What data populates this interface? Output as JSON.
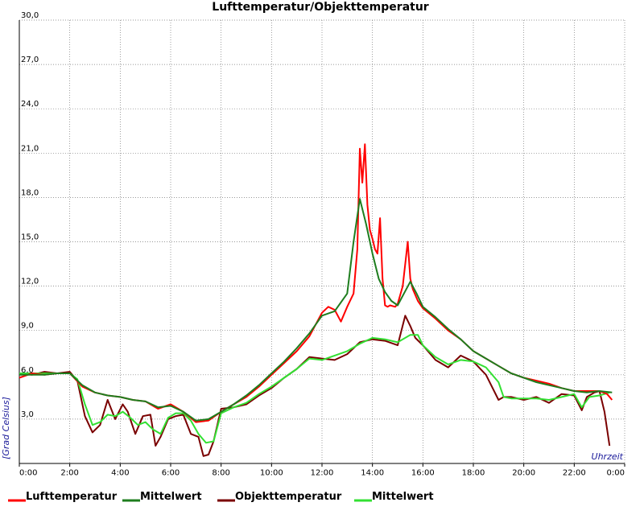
{
  "chart_data": {
    "type": "line",
    "title": "Lufttemperatur/Objekttemperatur",
    "xlabel": "Uhrzeit",
    "ylabel": "[Grad Celsius]",
    "xlim": [
      0,
      24
    ],
    "ylim": [
      0,
      30
    ],
    "grid": true,
    "legend_placement": "bottom",
    "x_ticks": [
      "0:00",
      "2:00",
      "4:00",
      "6:00",
      "8:00",
      "10:00",
      "12:00",
      "14:00",
      "16:00",
      "18:00",
      "20:00",
      "22:00",
      "0:00"
    ],
    "y_ticks": [
      "3,0",
      "6,0",
      "9,0",
      "12,0",
      "15,0",
      "18,0",
      "21,0",
      "24,0",
      "27,0",
      "30,0"
    ],
    "series": [
      {
        "name": "Lufttemperatur",
        "color": "#ff0000",
        "x": [
          0,
          0.5,
          1,
          1.5,
          2,
          2.5,
          3,
          3.5,
          4,
          4.5,
          5,
          5.5,
          6,
          6.5,
          7,
          7.5,
          8,
          8.5,
          9,
          9.5,
          10,
          10.5,
          11,
          11.5,
          12,
          12.25,
          12.5,
          12.75,
          13,
          13.25,
          13.4,
          13.5,
          13.6,
          13.7,
          13.8,
          13.9,
          14,
          14.1,
          14.2,
          14.3,
          14.4,
          14.5,
          14.6,
          14.7,
          14.9,
          15,
          15.2,
          15.4,
          15.5,
          15.6,
          15.8,
          16,
          16.5,
          17,
          17.5,
          18,
          18.5,
          19,
          19.5,
          20,
          20.5,
          21,
          21.5,
          22,
          22.5,
          23,
          23.3,
          23.5
        ],
        "values": [
          5.8,
          6.1,
          6.0,
          6.1,
          6.1,
          5.2,
          4.8,
          4.6,
          4.5,
          4.3,
          4.2,
          3.7,
          4.0,
          3.5,
          2.8,
          2.9,
          3.5,
          4.0,
          4.5,
          5.2,
          6.0,
          6.8,
          7.6,
          8.6,
          10.2,
          10.6,
          10.4,
          9.6,
          10.6,
          11.5,
          14.5,
          21.3,
          19.0,
          21.6,
          17.5,
          15.8,
          15.2,
          14.5,
          14.2,
          16.6,
          12.5,
          10.7,
          10.6,
          10.7,
          10.6,
          10.8,
          12.0,
          15.0,
          12.5,
          11.8,
          11.0,
          10.5,
          9.8,
          9.0,
          8.4,
          7.6,
          7.1,
          6.6,
          6.1,
          5.8,
          5.6,
          5.4,
          5.1,
          4.9,
          4.9,
          4.9,
          4.7,
          4.3
        ]
      },
      {
        "name": "Mittelwert",
        "color": "#1e7d1e",
        "x": [
          0,
          0.5,
          1,
          1.5,
          2,
          2.5,
          3,
          3.5,
          4,
          4.5,
          5,
          5.5,
          6,
          6.5,
          7,
          7.5,
          8,
          8.5,
          9,
          9.5,
          10,
          10.5,
          11,
          11.5,
          12,
          12.5,
          13,
          13.25,
          13.5,
          13.75,
          14,
          14.25,
          14.5,
          14.75,
          15,
          15.25,
          15.5,
          15.75,
          16,
          16.5,
          17,
          17.5,
          18,
          18.5,
          19,
          19.5,
          20,
          20.5,
          21,
          21.5,
          22,
          22.5,
          23,
          23.5
        ],
        "values": [
          6.0,
          6.0,
          6.0,
          6.1,
          6.1,
          5.3,
          4.8,
          4.6,
          4.5,
          4.3,
          4.2,
          3.8,
          3.9,
          3.5,
          2.9,
          3.0,
          3.5,
          4.0,
          4.6,
          5.3,
          6.1,
          6.9,
          7.8,
          8.8,
          10.0,
          10.3,
          11.5,
          15.0,
          17.9,
          16.2,
          14.2,
          12.5,
          11.6,
          11.0,
          10.7,
          11.5,
          12.3,
          11.5,
          10.6,
          9.9,
          9.1,
          8.4,
          7.6,
          7.1,
          6.6,
          6.1,
          5.8,
          5.5,
          5.3,
          5.1,
          4.9,
          4.8,
          4.9,
          4.8
        ]
      },
      {
        "name": "Objekttemperatur",
        "color": "#7a0000",
        "x": [
          0,
          0.5,
          1,
          1.5,
          2,
          2.3,
          2.6,
          2.9,
          3.2,
          3.5,
          3.8,
          4.1,
          4.3,
          4.6,
          4.9,
          5.2,
          5.4,
          5.6,
          5.9,
          6.2,
          6.5,
          6.8,
          7.1,
          7.3,
          7.5,
          7.7,
          8,
          8.5,
          9,
          9.5,
          10,
          10.5,
          11,
          11.5,
          12,
          12.5,
          13,
          13.5,
          14,
          14.5,
          15,
          15.3,
          15.5,
          15.7,
          16,
          16.5,
          17,
          17.5,
          18,
          18.5,
          19,
          19.2,
          19.5,
          20,
          20.5,
          21,
          21.5,
          22,
          22.3,
          22.5,
          22.8,
          23,
          23.2,
          23.4
        ],
        "values": [
          6.1,
          6.0,
          6.2,
          6.1,
          6.2,
          5.6,
          3.2,
          2.1,
          2.6,
          4.3,
          3.0,
          4.0,
          3.5,
          2.0,
          3.2,
          3.3,
          1.2,
          1.8,
          3.0,
          3.2,
          3.3,
          2.0,
          1.8,
          0.5,
          0.6,
          1.5,
          3.7,
          3.8,
          4.0,
          4.6,
          5.1,
          5.8,
          6.4,
          7.2,
          7.1,
          7.0,
          7.4,
          8.2,
          8.4,
          8.3,
          8.0,
          10.0,
          9.3,
          8.5,
          8.0,
          7.0,
          6.5,
          7.3,
          6.9,
          6.0,
          4.3,
          4.5,
          4.5,
          4.3,
          4.5,
          4.1,
          4.7,
          4.6,
          3.6,
          4.5,
          4.8,
          4.9,
          3.5,
          1.2
        ]
      },
      {
        "name": "Mittelwert",
        "color": "#33e033",
        "x": [
          0,
          0.5,
          1,
          1.5,
          2,
          2.3,
          2.6,
          2.9,
          3.2,
          3.5,
          3.8,
          4.1,
          4.4,
          4.7,
          5,
          5.3,
          5.6,
          5.9,
          6.2,
          6.5,
          6.8,
          7.1,
          7.4,
          7.7,
          8,
          8.5,
          9,
          9.5,
          10,
          10.5,
          11,
          11.5,
          12,
          12.5,
          13,
          13.5,
          14,
          14.5,
          15,
          15.5,
          15.8,
          16,
          16.5,
          17,
          17.5,
          18,
          18.5,
          19,
          19.2,
          19.5,
          20,
          20.5,
          21,
          21.5,
          22,
          22.3,
          22.6,
          23,
          23.4
        ],
        "values": [
          6.1,
          6.1,
          6.1,
          6.1,
          6.1,
          5.7,
          4.0,
          2.6,
          2.8,
          3.3,
          3.2,
          3.5,
          3.1,
          2.6,
          2.8,
          2.3,
          2.0,
          3.1,
          3.4,
          3.4,
          2.9,
          2.0,
          1.4,
          1.5,
          3.4,
          3.8,
          4.1,
          4.7,
          5.2,
          5.8,
          6.4,
          7.1,
          7.0,
          7.3,
          7.6,
          8.1,
          8.5,
          8.4,
          8.2,
          8.7,
          8.7,
          8.0,
          7.2,
          6.7,
          7.0,
          6.9,
          6.5,
          5.5,
          4.5,
          4.4,
          4.4,
          4.4,
          4.3,
          4.5,
          4.7,
          3.8,
          4.5,
          4.6,
          4.8
        ]
      }
    ]
  }
}
